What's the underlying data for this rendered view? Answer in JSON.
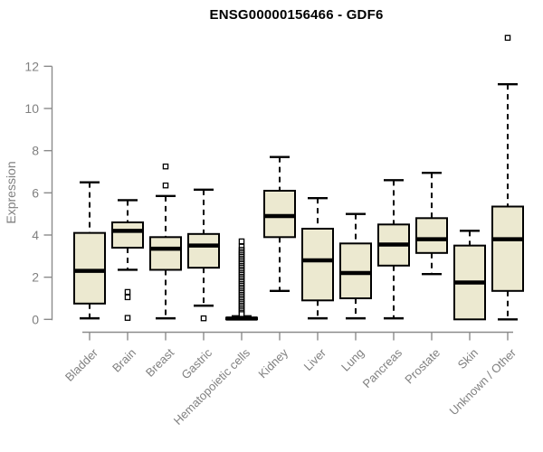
{
  "header": {
    "title": "ENSG00000156466 - GDF6"
  },
  "chart_data": {
    "type": "box",
    "title": "ENSG00000156466 - GDF6",
    "xlabel": "",
    "ylabel": "Expression",
    "ylim": [
      0,
      13.5
    ],
    "yticks": [
      0,
      2,
      4,
      6,
      8,
      10,
      12
    ],
    "grid": false,
    "legend": "none",
    "categories": [
      "Bladder",
      "Brain",
      "Breast",
      "Gastric",
      "Hematopoietic cells",
      "Kidney",
      "Liver",
      "Lung",
      "Pancreas",
      "Prostate",
      "Skin",
      "Unknown / Other"
    ],
    "series": [
      {
        "name": "Bladder",
        "low": 0.05,
        "q1": 0.75,
        "median": 2.3,
        "q3": 4.1,
        "high": 6.5,
        "outliers": []
      },
      {
        "name": "Brain",
        "low": 2.35,
        "q1": 3.4,
        "median": 4.2,
        "q3": 4.6,
        "high": 5.65,
        "outliers": [
          1.3,
          1.05,
          0.07
        ]
      },
      {
        "name": "Breast",
        "low": 0.05,
        "q1": 2.35,
        "median": 3.35,
        "q3": 3.9,
        "high": 5.85,
        "outliers": [
          7.25,
          6.35
        ]
      },
      {
        "name": "Gastric",
        "low": 0.65,
        "q1": 2.45,
        "median": 3.5,
        "q3": 4.05,
        "high": 6.15,
        "outliers": [
          0.05
        ]
      },
      {
        "name": "Hematopoietic cells",
        "low": 0.0,
        "q1": 0.0,
        "median": 0.04,
        "q3": 0.08,
        "high": 0.15,
        "outliers": [
          3.7,
          3.45,
          3.3,
          3.21,
          3.13,
          3.04,
          2.96,
          2.87,
          2.79,
          2.7,
          2.62,
          2.53,
          2.45,
          2.36,
          2.28,
          2.19,
          2.11,
          2.02,
          1.94,
          1.85,
          1.77,
          1.68,
          1.6,
          1.51,
          1.43,
          1.34,
          1.26,
          1.17,
          1.09,
          1.0,
          0.92,
          0.83,
          0.75,
          0.66,
          0.58,
          0.49,
          0.41,
          0.32,
          0.25
        ]
      },
      {
        "name": "Kidney",
        "low": 1.35,
        "q1": 3.9,
        "median": 4.9,
        "q3": 6.1,
        "high": 7.7,
        "outliers": []
      },
      {
        "name": "Liver",
        "low": 0.05,
        "q1": 0.9,
        "median": 2.8,
        "q3": 4.3,
        "high": 5.75,
        "outliers": []
      },
      {
        "name": "Lung",
        "low": 0.05,
        "q1": 1.0,
        "median": 2.2,
        "q3": 3.6,
        "high": 5.0,
        "outliers": []
      },
      {
        "name": "Pancreas",
        "low": 0.05,
        "q1": 2.55,
        "median": 3.55,
        "q3": 4.5,
        "high": 6.6,
        "outliers": []
      },
      {
        "name": "Prostate",
        "low": 2.15,
        "q1": 3.15,
        "median": 3.8,
        "q3": 4.8,
        "high": 6.95,
        "outliers": []
      },
      {
        "name": "Skin",
        "low": 0.0,
        "q1": 0.0,
        "median": 1.75,
        "q3": 3.5,
        "high": 4.2,
        "outliers": []
      },
      {
        "name": "Unknown / Other",
        "low": 0.0,
        "q1": 1.35,
        "median": 3.8,
        "q3": 5.35,
        "high": 11.15,
        "outliers": [
          13.35
        ]
      }
    ],
    "colors": {
      "box_fill": "#ece9d0",
      "box_stroke": "#000000",
      "median": "#000000",
      "whisker": "#000000",
      "outlier_fill": "#ffffff",
      "axis": "#8b8b8b",
      "tick_label": "#808080",
      "title": "#000000",
      "background": "#ffffff"
    }
  }
}
